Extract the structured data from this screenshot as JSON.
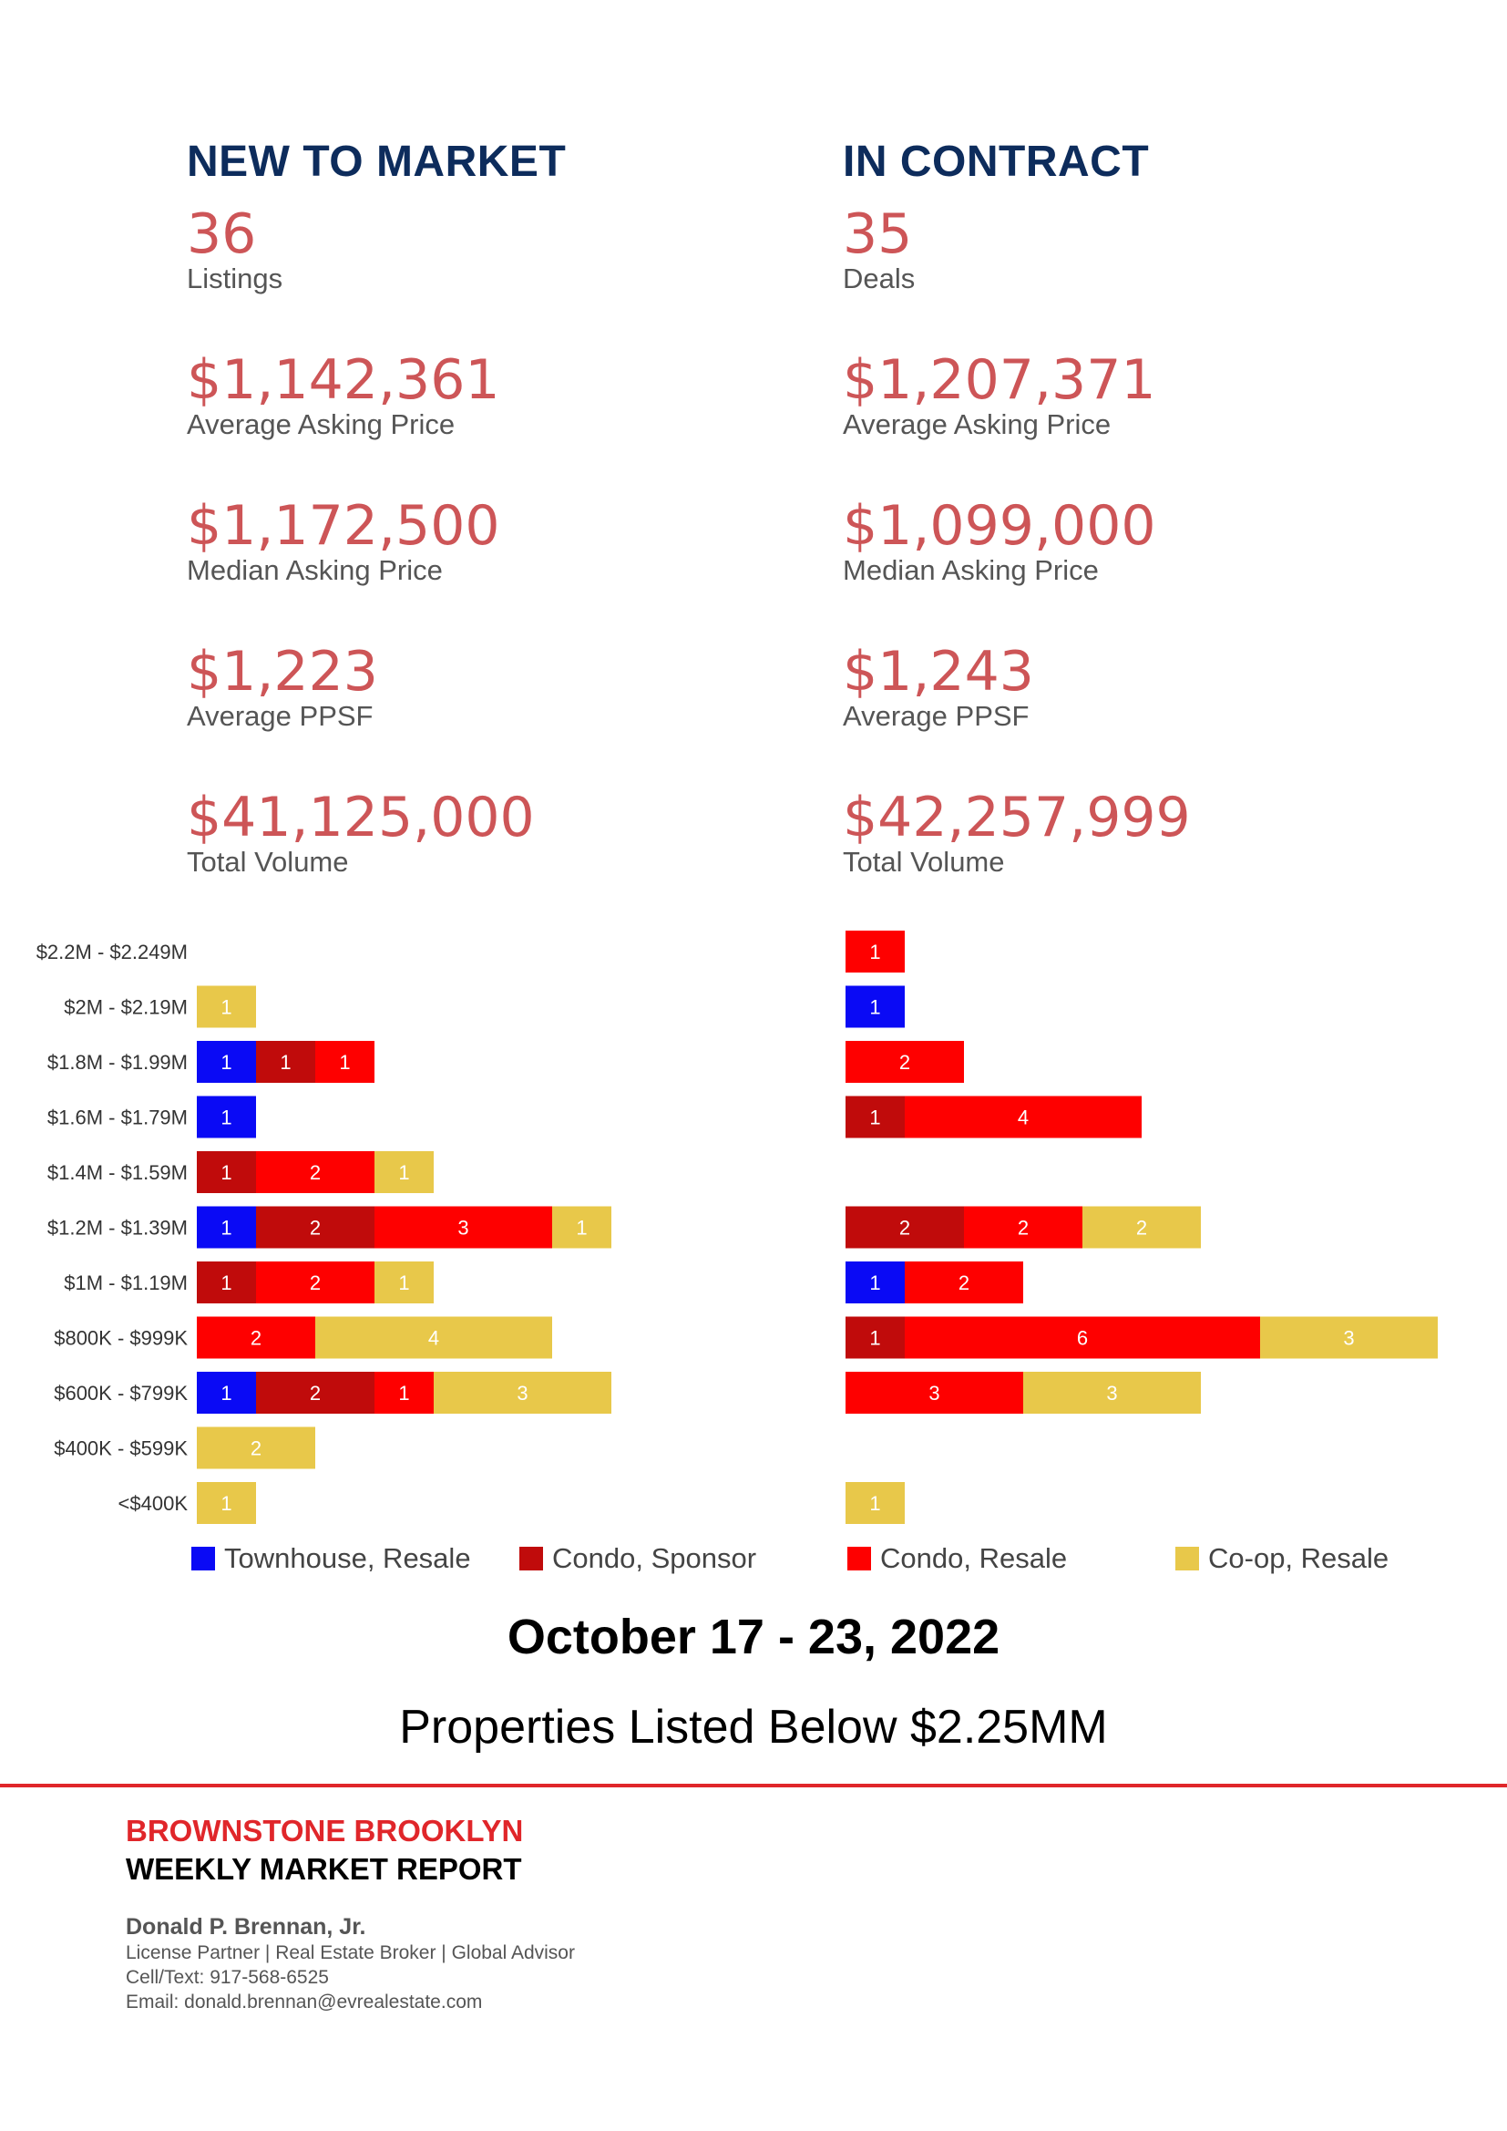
{
  "new_to_market": {
    "title": "NEW TO MARKET",
    "stats": [
      {
        "value": "36",
        "label": "Listings"
      },
      {
        "value": "$1,142,361",
        "label": "Average Asking Price"
      },
      {
        "value": "$1,172,500",
        "label": "Median Asking Price"
      },
      {
        "value": "$1,223",
        "label": "Average PPSF"
      },
      {
        "value": "$41,125,000",
        "label": "Total Volume"
      }
    ]
  },
  "in_contract": {
    "title": "IN CONTRACT",
    "stats": [
      {
        "value": "35",
        "label": "Deals"
      },
      {
        "value": "$1,207,371",
        "label": "Average Asking Price"
      },
      {
        "value": "$1,099,000",
        "label": "Median Asking Price"
      },
      {
        "value": "$1,243",
        "label": "Average PPSF"
      },
      {
        "value": "$42,257,999",
        "label": "Total Volume"
      }
    ]
  },
  "chart_data": [
    {
      "type": "bar",
      "orientation": "horizontal",
      "stacked": true,
      "panel": "NEW TO MARKET",
      "categories": [
        "$2.2M - $2.249M",
        "$2M - $2.19M",
        "$1.8M - $1.99M",
        "$1.6M - $1.79M",
        "$1.4M - $1.59M",
        "$1.2M - $1.39M",
        "$1M - $1.19M",
        "$800K - $999K",
        "$600K - $799K",
        "$400K - $599K",
        "<$400K"
      ],
      "series": [
        {
          "name": "Townhouse, Resale",
          "color": "#0a0af5",
          "values": [
            0,
            0,
            1,
            1,
            0,
            1,
            0,
            0,
            1,
            0,
            0
          ]
        },
        {
          "name": "Condo, Sponsor",
          "color": "#c00b0b",
          "values": [
            0,
            0,
            1,
            0,
            1,
            2,
            1,
            0,
            2,
            0,
            0
          ]
        },
        {
          "name": "Condo, Resale",
          "color": "#fe0000",
          "values": [
            0,
            0,
            1,
            0,
            2,
            3,
            2,
            2,
            1,
            0,
            0
          ]
        },
        {
          "name": "Co-op, Resale",
          "color": "#e8c84a",
          "values": [
            0,
            1,
            0,
            0,
            1,
            1,
            1,
            4,
            3,
            2,
            1
          ]
        }
      ]
    },
    {
      "type": "bar",
      "orientation": "horizontal",
      "stacked": true,
      "panel": "IN CONTRACT",
      "categories": [
        "$2.2M - $2.249M",
        "$2M - $2.19M",
        "$1.8M - $1.99M",
        "$1.6M - $1.79M",
        "$1.4M - $1.59M",
        "$1.2M - $1.39M",
        "$1M - $1.19M",
        "$800K - $999K",
        "$600K - $799K",
        "$400K - $599K",
        "<$400K"
      ],
      "series": [
        {
          "name": "Townhouse, Resale",
          "color": "#0a0af5",
          "values": [
            0,
            1,
            0,
            0,
            0,
            0,
            1,
            0,
            0,
            0,
            0
          ]
        },
        {
          "name": "Condo, Sponsor",
          "color": "#c00b0b",
          "values": [
            0,
            0,
            0,
            1,
            0,
            2,
            0,
            1,
            0,
            0,
            0
          ]
        },
        {
          "name": "Condo, Resale",
          "color": "#fe0000",
          "values": [
            1,
            0,
            2,
            4,
            0,
            2,
            2,
            6,
            3,
            0,
            0
          ]
        },
        {
          "name": "Co-op, Resale",
          "color": "#e8c84a",
          "values": [
            0,
            0,
            0,
            0,
            0,
            2,
            0,
            3,
            3,
            0,
            1
          ]
        }
      ]
    }
  ],
  "legend": [
    {
      "label": "Townhouse, Resale",
      "color": "#0a0af5"
    },
    {
      "label": "Condo, Sponsor",
      "color": "#c00b0b"
    },
    {
      "label": "Condo, Resale",
      "color": "#fe0000"
    },
    {
      "label": "Co-op, Resale",
      "color": "#e8c84a"
    }
  ],
  "date_range": "October 17 - 23, 2022",
  "subtitle": "Properties Listed Below $2.25MM",
  "footer": {
    "brand_line1": "BROWNSTONE BROOKLYN",
    "brand_line2": "WEEKLY MARKET REPORT",
    "name": "Donald P. Brennan, Jr.",
    "role": "License Partner | Real Estate Broker | Global Advisor",
    "phone": "Cell/Text: 917-568-6525",
    "email": "Email: donald.brennan@evrealestate.com"
  }
}
